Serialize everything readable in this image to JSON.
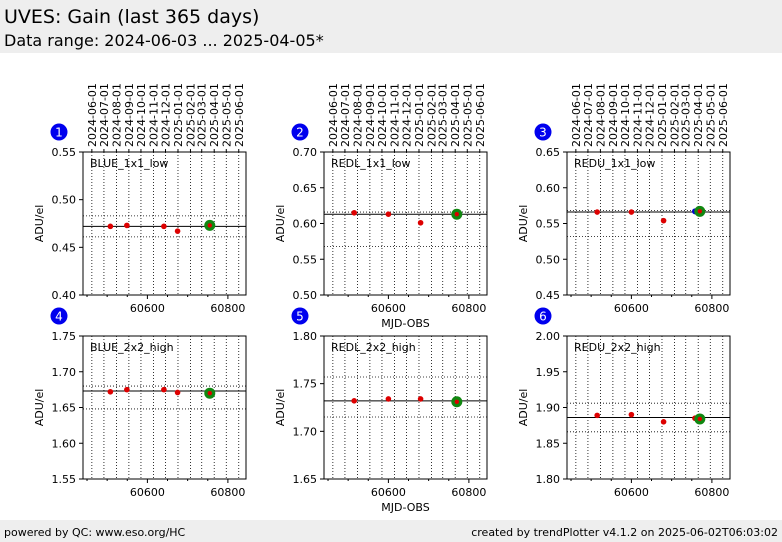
{
  "header": {
    "title": "UVES: Gain (last 365 days)",
    "subtitle": "Data range: 2024-06-03 ... 2025-04-05*"
  },
  "footer": {
    "left": "powered by QC: www.eso.org/HC",
    "right": "created by trendPlotter v4.1.2 on 2025-06-02T06:03:02"
  },
  "colors": {
    "point": "#dd0000",
    "latest": "#118811",
    "extra_point": "#0000cc",
    "badge": "#0000ee",
    "grid": "#000000",
    "header_bg": "#eeeeee"
  },
  "chart_data": [
    {
      "type": "scatter",
      "badge": "1",
      "label": "BLUE_1x1_low",
      "xlim": [
        60440,
        60845
      ],
      "ylim": [
        0.4,
        0.55
      ],
      "yticks": [
        "0.40",
        "0.45",
        "0.50",
        "0.55"
      ],
      "xticks": [
        60600,
        60800
      ],
      "xtick_labels": [
        "60600",
        "60800"
      ],
      "ylabel": "ADU/el",
      "xlabel": "",
      "date_ticks": [
        "2024-06-01",
        "2024-07-01",
        "2024-08-01",
        "2024-09-01",
        "2024-10-01",
        "2024-11-01",
        "2024-12-01",
        "2025-01-01",
        "2025-02-01",
        "2025-03-01",
        "2025-04-01",
        "2025-05-01",
        "2025-06-01"
      ],
      "mean": 0.472,
      "band": [
        0.461,
        0.483
      ],
      "points": [
        {
          "x": 60508,
          "y": 0.472
        },
        {
          "x": 60549,
          "y": 0.473
        },
        {
          "x": 60641,
          "y": 0.472
        },
        {
          "x": 60675,
          "y": 0.467
        }
      ],
      "latest": {
        "x": 60755,
        "y": 0.473
      }
    },
    {
      "type": "scatter",
      "badge": "2",
      "label": "REDL_1x1_low",
      "xlim": [
        60440,
        60845
      ],
      "ylim": [
        0.5,
        0.7
      ],
      "yticks": [
        "0.50",
        "0.55",
        "0.60",
        "0.65",
        "0.70"
      ],
      "xticks": [
        60600,
        60800
      ],
      "xtick_labels": [
        "60600",
        "60800"
      ],
      "ylabel": "ADU/el",
      "xlabel": "MJD-OBS",
      "date_ticks": [
        "2024-06-01",
        "2024-07-01",
        "2024-08-01",
        "2024-09-01",
        "2024-10-01",
        "2024-11-01",
        "2024-12-01",
        "2025-01-01",
        "2025-02-01",
        "2025-03-01",
        "2025-04-01",
        "2025-05-01",
        "2025-06-01"
      ],
      "mean": 0.613,
      "band": [
        0.568,
        0.616
      ],
      "points": [
        {
          "x": 60515,
          "y": 0.615
        },
        {
          "x": 60600,
          "y": 0.613
        },
        {
          "x": 60680,
          "y": 0.601
        }
      ],
      "latest": {
        "x": 60770,
        "y": 0.613
      }
    },
    {
      "type": "scatter",
      "badge": "3",
      "label": "REDU_1x1_low",
      "xlim": [
        60440,
        60845
      ],
      "ylim": [
        0.45,
        0.65
      ],
      "yticks": [
        "0.45",
        "0.50",
        "0.55",
        "0.60",
        "0.65"
      ],
      "xticks": [
        60600,
        60800
      ],
      "xtick_labels": [
        "60600",
        "60800"
      ],
      "ylabel": "ADU/el",
      "xlabel": "",
      "date_ticks": [
        "2024-06-01",
        "2024-07-01",
        "2024-08-01",
        "2024-09-01",
        "2024-10-01",
        "2024-11-01",
        "2024-12-01",
        "2025-01-01",
        "2025-02-01",
        "2025-03-01",
        "2025-04-01",
        "2025-05-01",
        "2025-06-01"
      ],
      "mean": 0.566,
      "band": [
        0.532,
        0.568
      ],
      "points": [
        {
          "x": 60515,
          "y": 0.566
        },
        {
          "x": 60600,
          "y": 0.566
        },
        {
          "x": 60680,
          "y": 0.554
        }
      ],
      "extra_points": [
        {
          "x": 60758,
          "y": 0.567
        }
      ],
      "latest": {
        "x": 60770,
        "y": 0.567
      }
    },
    {
      "type": "scatter",
      "badge": "4",
      "label": "BLUE_2x2_high",
      "xlim": [
        60440,
        60845
      ],
      "ylim": [
        1.55,
        1.75
      ],
      "yticks": [
        "1.55",
        "1.60",
        "1.65",
        "1.70",
        "1.75"
      ],
      "xticks": [
        60600,
        60800
      ],
      "xtick_labels": [
        "60600",
        "60800"
      ],
      "ylabel": "ADU/el",
      "xlabel": "",
      "date_ticks": [],
      "mean": 1.673,
      "band": [
        1.648,
        1.68
      ],
      "points": [
        {
          "x": 60508,
          "y": 1.672
        },
        {
          "x": 60549,
          "y": 1.675
        },
        {
          "x": 60641,
          "y": 1.675
        },
        {
          "x": 60675,
          "y": 1.671
        }
      ],
      "latest": {
        "x": 60755,
        "y": 1.67
      }
    },
    {
      "type": "scatter",
      "badge": "5",
      "label": "REDL_2x2_high",
      "xlim": [
        60440,
        60845
      ],
      "ylim": [
        1.65,
        1.8
      ],
      "yticks": [
        "1.65",
        "1.70",
        "1.75",
        "1.80"
      ],
      "xticks": [
        60600,
        60800
      ],
      "xtick_labels": [
        "60600",
        "60800"
      ],
      "ylabel": "ADU/el",
      "xlabel": "MJD-OBS",
      "date_ticks": [],
      "mean": 1.732,
      "band": [
        1.715,
        1.757
      ],
      "points": [
        {
          "x": 60515,
          "y": 1.732
        },
        {
          "x": 60600,
          "y": 1.734
        },
        {
          "x": 60680,
          "y": 1.734
        }
      ],
      "latest": {
        "x": 60770,
        "y": 1.731
      }
    },
    {
      "type": "scatter",
      "badge": "6",
      "label": "REDU_2x2_high",
      "xlim": [
        60440,
        60845
      ],
      "ylim": [
        1.8,
        2.0
      ],
      "yticks": [
        "1.80",
        "1.85",
        "1.90",
        "1.95",
        "2.00"
      ],
      "xticks": [
        60600,
        60800
      ],
      "xtick_labels": [
        "60600",
        "60800"
      ],
      "ylabel": "ADU/el",
      "xlabel": "",
      "date_ticks": [],
      "mean": 1.886,
      "band": [
        1.866,
        1.906
      ],
      "points": [
        {
          "x": 60515,
          "y": 1.889
        },
        {
          "x": 60600,
          "y": 1.89
        },
        {
          "x": 60680,
          "y": 1.88
        },
        {
          "x": 60758,
          "y": 1.885
        }
      ],
      "latest": {
        "x": 60770,
        "y": 1.884
      }
    }
  ]
}
